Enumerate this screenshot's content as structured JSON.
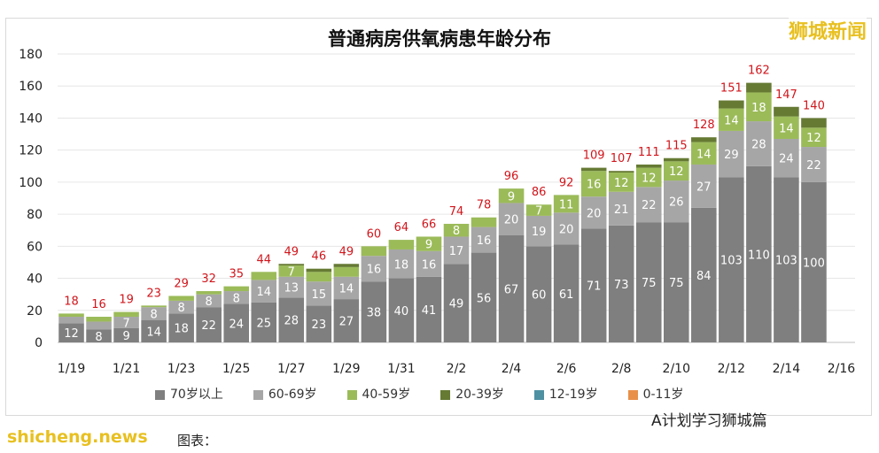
{
  "chart_data": {
    "type": "bar",
    "stacked": true,
    "title": "普通病房供氧病患年龄分布",
    "categories": [
      "1/19",
      "1/20",
      "1/21",
      "1/22",
      "1/23",
      "1/24",
      "1/25",
      "1/26",
      "1/27",
      "1/28",
      "1/29",
      "1/30",
      "1/31",
      "2/1",
      "2/2",
      "2/3",
      "2/4",
      "2/5",
      "2/6",
      "2/7",
      "2/8",
      "2/9",
      "2/10",
      "2/11",
      "2/12",
      "2/13",
      "2/14",
      "2/15",
      "2/16"
    ],
    "xtick_labels": [
      "1/19",
      "1/21",
      "1/23",
      "1/25",
      "1/27",
      "1/29",
      "1/31",
      "2/2",
      "2/4",
      "2/6",
      "2/8",
      "2/10",
      "2/12",
      "2/14",
      "2/16"
    ],
    "ylim": [
      0,
      180
    ],
    "yticks": [
      0,
      20,
      40,
      60,
      80,
      100,
      120,
      140,
      160,
      180
    ],
    "grid": true,
    "legend": "bottom",
    "series": [
      {
        "name": "70岁以上",
        "color": "#7f7f7f",
        "values": [
          12,
          8,
          9,
          14,
          18,
          22,
          24,
          25,
          28,
          23,
          27,
          38,
          40,
          41,
          49,
          56,
          67,
          60,
          61,
          71,
          73,
          75,
          75,
          84,
          103,
          110,
          103,
          100,
          0
        ]
      },
      {
        "name": "60-69岁",
        "color": "#a6a6a6",
        "values": [
          4,
          5,
          7,
          8,
          8,
          8,
          8,
          14,
          13,
          15,
          14,
          16,
          18,
          16,
          17,
          16,
          20,
          19,
          20,
          20,
          21,
          22,
          26,
          27,
          29,
          28,
          24,
          22,
          0
        ]
      },
      {
        "name": "40-59岁",
        "color": "#9bbb59",
        "values": [
          2,
          3,
          3,
          1,
          3,
          2,
          3,
          5,
          7,
          6,
          6,
          6,
          6,
          9,
          8,
          6,
          9,
          7,
          11,
          16,
          12,
          12,
          12,
          14,
          14,
          18,
          14,
          12,
          0
        ]
      },
      {
        "name": "20-39岁",
        "color": "#667a34",
        "values": [
          0,
          0,
          0,
          0,
          0,
          0,
          0,
          0,
          1,
          2,
          2,
          0,
          0,
          0,
          0,
          0,
          0,
          0,
          0,
          2,
          1,
          2,
          2,
          3,
          5,
          6,
          6,
          6,
          0
        ]
      },
      {
        "name": "12-19岁",
        "color": "#4e91a3",
        "values": [
          0,
          0,
          0,
          0,
          0,
          0,
          0,
          0,
          0,
          0,
          0,
          0,
          0,
          0,
          0,
          0,
          0,
          0,
          0,
          0,
          0,
          0,
          0,
          0,
          0,
          0,
          0,
          0,
          0
        ]
      },
      {
        "name": "0-11岁",
        "color": "#e8904a",
        "values": [
          0,
          0,
          0,
          0,
          0,
          0,
          0,
          0,
          0,
          0,
          0,
          0,
          0,
          0,
          0,
          0,
          0,
          0,
          0,
          0,
          0,
          0,
          0,
          0,
          0,
          0,
          0,
          0,
          0
        ]
      }
    ],
    "totals": [
      18,
      16,
      19,
      23,
      29,
      32,
      35,
      44,
      49,
      46,
      49,
      60,
      64,
      66,
      74,
      78,
      96,
      86,
      92,
      109,
      107,
      111,
      115,
      128,
      151,
      162,
      147,
      140,
      null
    ],
    "total_color": "#d0161c"
  },
  "logo": "狮城新闻",
  "watermark": "shicheng.news",
  "source_account": "A计划学习狮城篇",
  "caption": "图表："
}
